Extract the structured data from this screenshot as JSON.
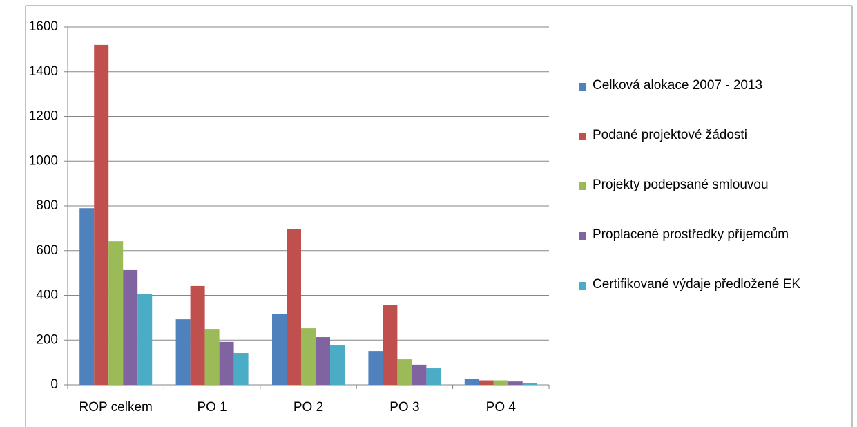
{
  "chart_data": {
    "type": "bar",
    "categories": [
      "ROP celkem",
      "PO 1",
      "PO 2",
      "PO 3",
      "PO 4"
    ],
    "series": [
      {
        "name": "Celková alokace 2007 - 2013",
        "color": "#4f81bd",
        "values": [
          790,
          293,
          318,
          151,
          25
        ]
      },
      {
        "name": "Podané projektové žádosti",
        "color": "#c0504d",
        "values": [
          1520,
          442,
          698,
          358,
          20
        ]
      },
      {
        "name": "Projekty podepsané smlouvou",
        "color": "#9bbb59",
        "values": [
          642,
          250,
          253,
          114,
          20
        ]
      },
      {
        "name": "Proplacené prostředky příjemcům",
        "color": "#8064a2",
        "values": [
          513,
          192,
          213,
          90,
          15
        ]
      },
      {
        "name": "Certifikované výdaje předložené EK",
        "color": "#4bacc6",
        "values": [
          405,
          142,
          176,
          74,
          8
        ]
      }
    ],
    "ylim": [
      0,
      1600
    ],
    "yticks": [
      0,
      200,
      400,
      600,
      800,
      1000,
      1200,
      1400,
      1600
    ],
    "grid": true,
    "legend": "right"
  }
}
